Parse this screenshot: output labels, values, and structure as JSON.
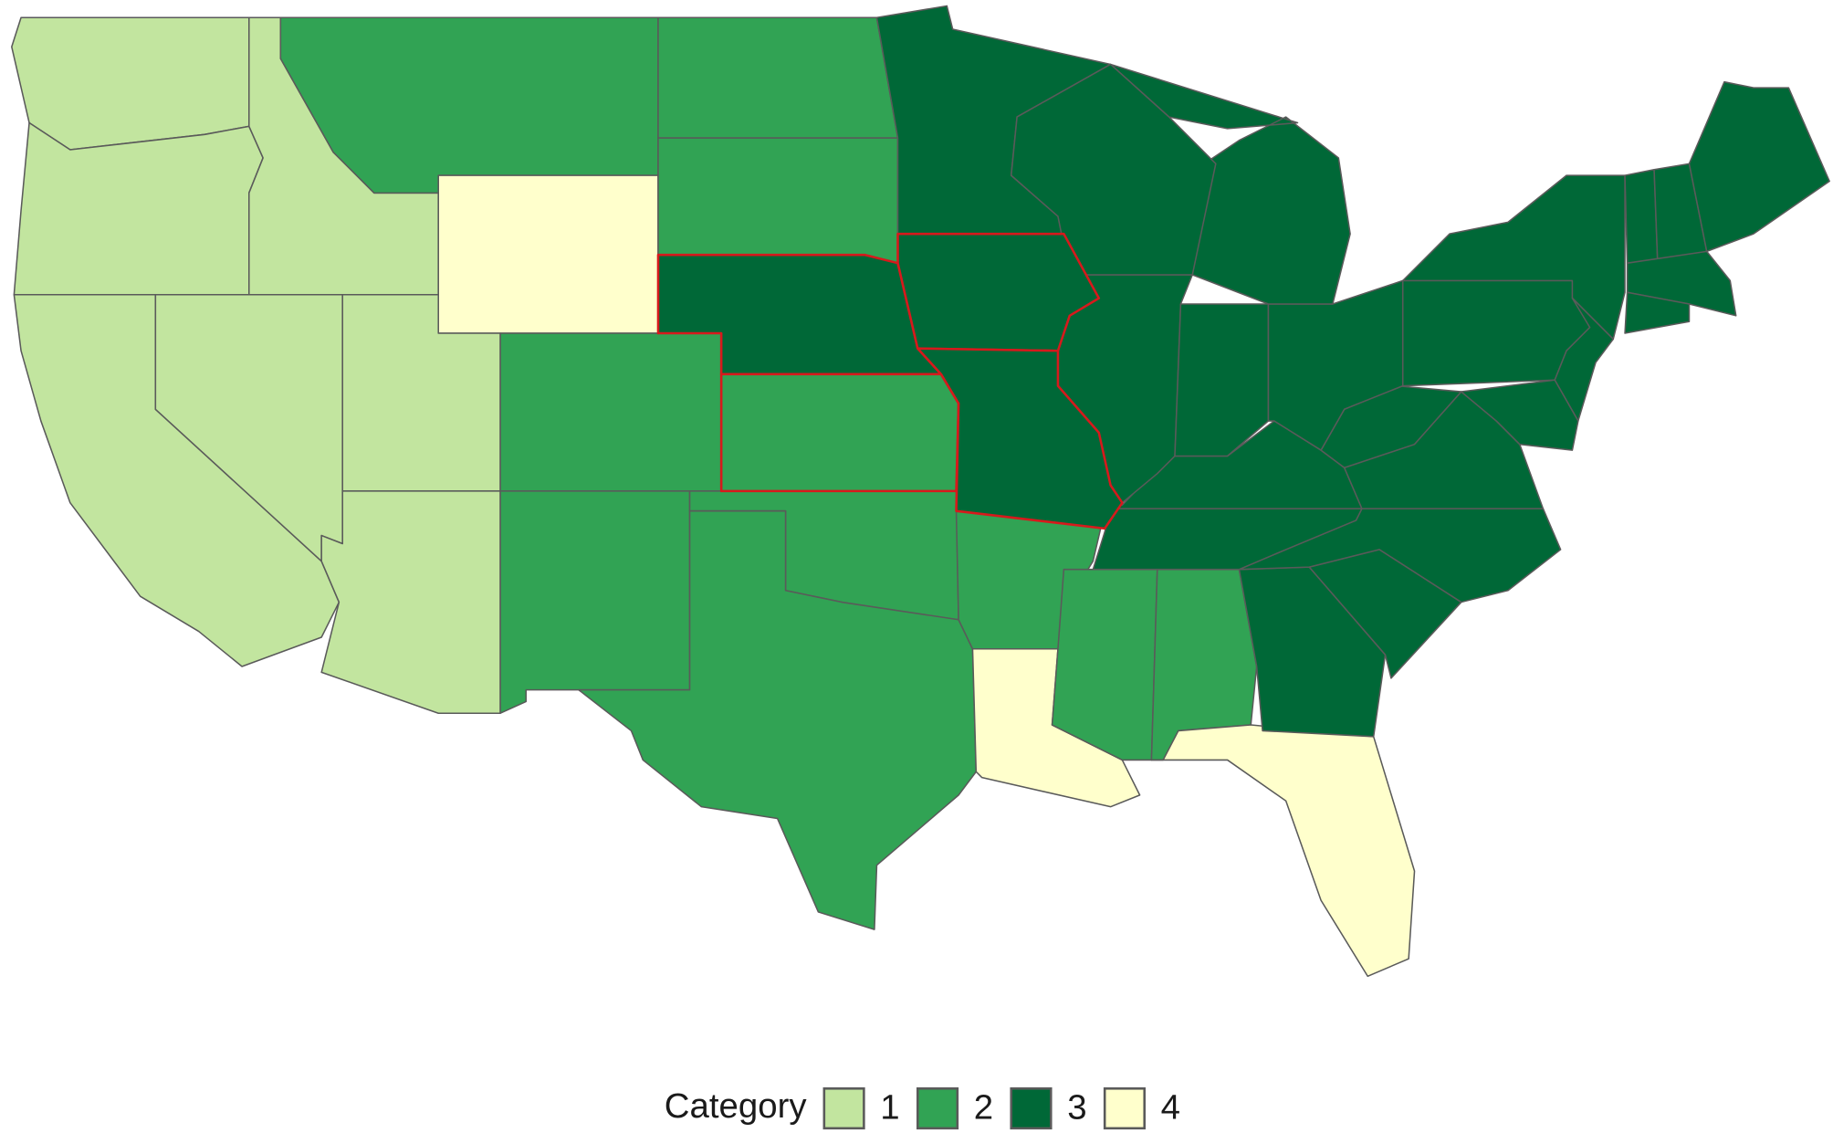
{
  "legend": {
    "title": "Category",
    "items": [
      {
        "value": 1,
        "color": "#c2e59f"
      },
      {
        "value": 2,
        "color": "#31a354"
      },
      {
        "value": 3,
        "color": "#006837"
      },
      {
        "value": 4,
        "color": "#ffffcc"
      }
    ]
  },
  "highlight_color": "#d7191c",
  "regions": [
    {
      "category": 1,
      "highlight": false
    },
    {
      "category": 1,
      "highlight": false
    },
    {
      "category": 1,
      "highlight": false
    },
    {
      "category": 1,
      "highlight": false
    },
    {
      "category": 1,
      "highlight": false
    },
    {
      "category": 2,
      "highlight": false
    },
    {
      "category": 4,
      "highlight": false
    },
    {
      "category": 1,
      "highlight": false
    },
    {
      "category": 1,
      "highlight": false
    },
    {
      "category": 2,
      "highlight": false
    },
    {
      "category": 2,
      "highlight": false
    },
    {
      "category": 2,
      "highlight": false
    },
    {
      "category": 2,
      "highlight": false
    },
    {
      "category": 3,
      "highlight": true
    },
    {
      "category": 2,
      "highlight": true
    },
    {
      "category": 2,
      "highlight": false
    },
    {
      "category": 2,
      "highlight": false
    },
    {
      "category": 3,
      "highlight": false
    },
    {
      "category": 3,
      "highlight": true
    },
    {
      "category": 3,
      "highlight": true
    },
    {
      "category": 2,
      "highlight": false
    },
    {
      "category": 4,
      "highlight": false
    },
    {
      "category": 2,
      "highlight": false
    },
    {
      "category": 2,
      "highlight": false
    },
    {
      "category": 4,
      "highlight": false
    },
    {
      "category": 3,
      "highlight": false
    },
    {
      "category": 3,
      "highlight": false
    },
    {
      "category": 3,
      "highlight": false
    },
    {
      "category": 3,
      "highlight": false
    },
    {
      "category": 3,
      "highlight": false
    },
    {
      "category": 3,
      "highlight": false
    },
    {
      "category": 3,
      "highlight": false
    },
    {
      "category": 3,
      "highlight": false
    },
    {
      "category": 3,
      "highlight": false
    },
    {
      "category": 3,
      "highlight": false
    },
    {
      "category": 3,
      "highlight": false
    },
    {
      "category": 3,
      "highlight": false
    },
    {
      "category": 3,
      "highlight": false
    },
    {
      "category": 3,
      "highlight": false
    },
    {
      "category": 3,
      "highlight": false
    },
    {
      "category": 3,
      "highlight": false
    },
    {
      "category": 3,
      "highlight": false
    },
    {
      "category": 3,
      "highlight": false
    },
    {
      "category": 3,
      "highlight": false
    },
    {
      "category": 3,
      "highlight": false
    },
    {
      "category": 3,
      "highlight": false
    }
  ]
}
